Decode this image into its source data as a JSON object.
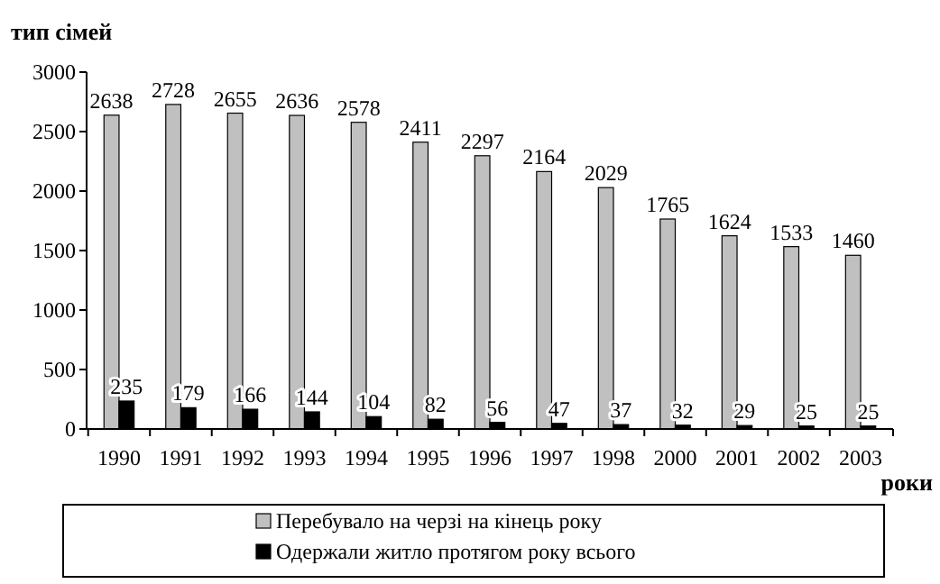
{
  "chart_data": {
    "type": "bar",
    "ylabel": "тип сімей",
    "xlabel": "роки",
    "categories": [
      "1990",
      "1991",
      "1992",
      "1993",
      "1994",
      "1995",
      "1996",
      "1997",
      "1998",
      "2000",
      "2001",
      "2002",
      "2003"
    ],
    "series": [
      {
        "name": "Перебувало на черзі на кінець року",
        "color": "#c0c0c0",
        "values": [
          2638,
          2728,
          2655,
          2636,
          2578,
          2411,
          2297,
          2164,
          2029,
          1765,
          1624,
          1533,
          1460
        ]
      },
      {
        "name": "Одержали житло протягом року всього",
        "color": "#000000",
        "values": [
          235,
          179,
          166,
          144,
          104,
          82,
          56,
          47,
          37,
          32,
          29,
          25,
          25
        ]
      }
    ],
    "ylim": [
      0,
      3000
    ],
    "yticks": [
      0,
      500,
      1000,
      1500,
      2000,
      2500,
      3000
    ],
    "data_labels": true,
    "legend": "bottom",
    "grid": false
  }
}
